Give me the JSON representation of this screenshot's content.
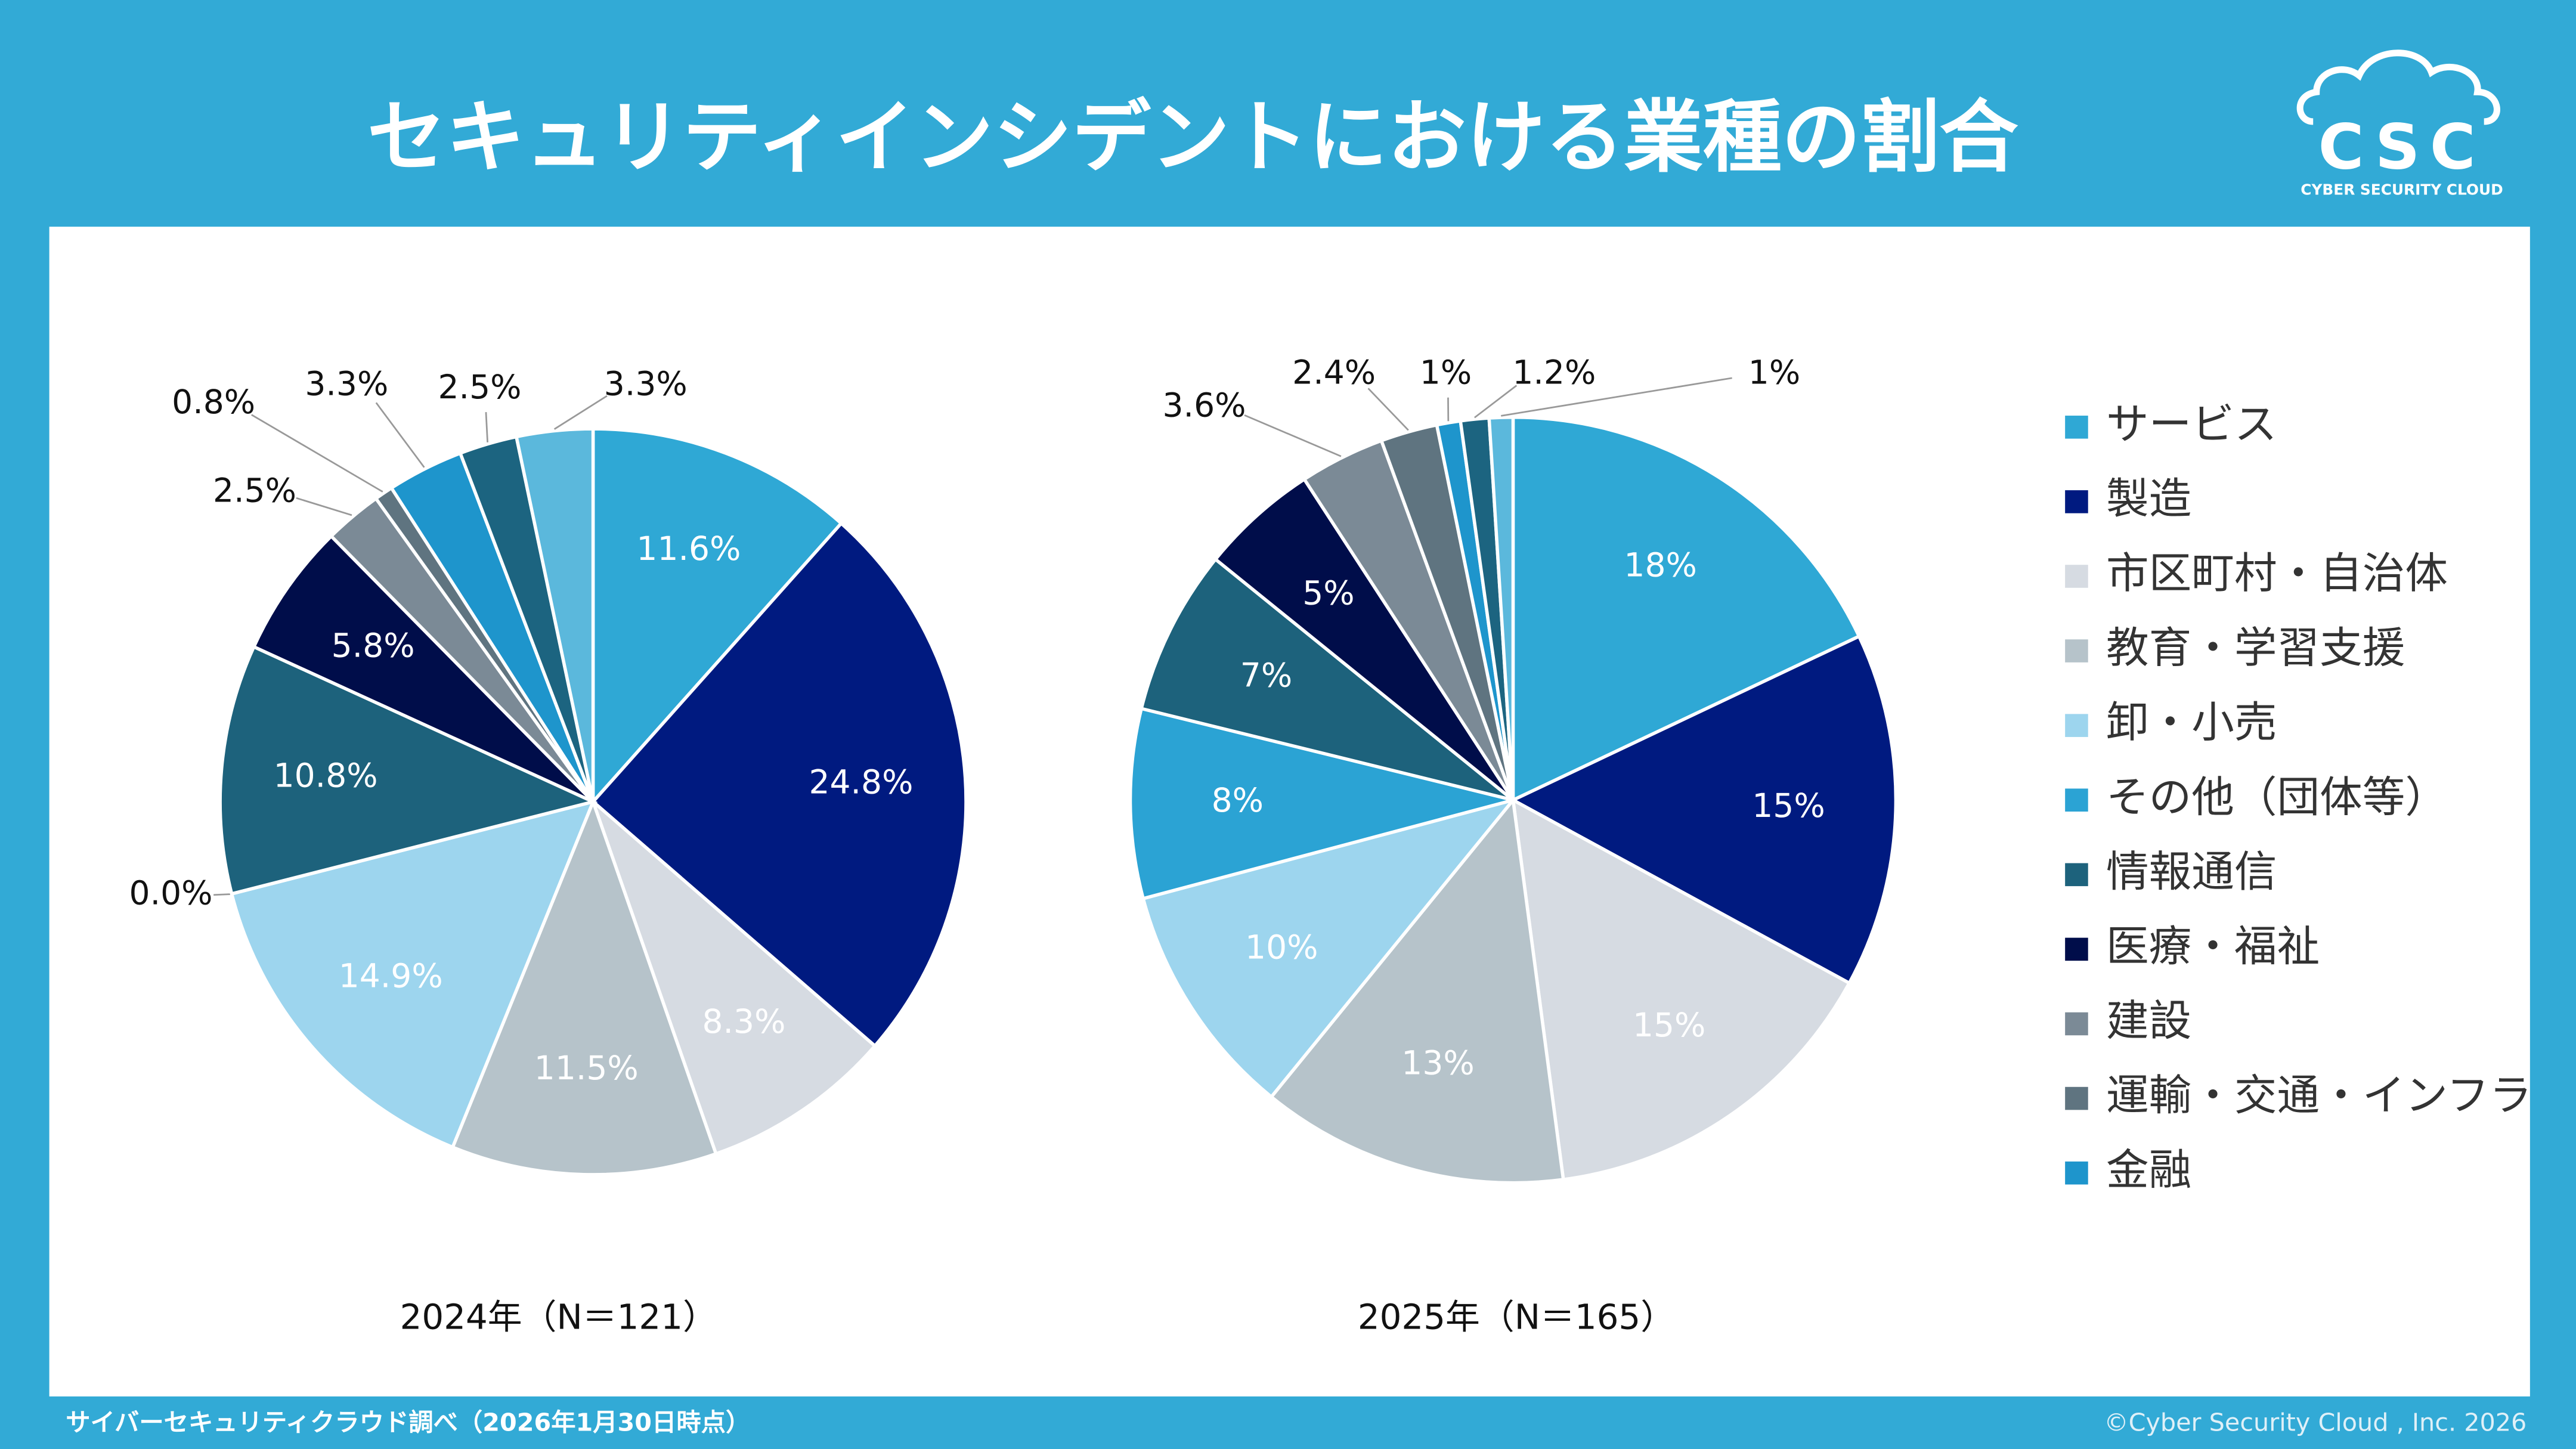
{
  "header": {
    "title": "セキュリティインシデントにおける業種の割合"
  },
  "logo": {
    "text": "CSC",
    "subtitle": "CYBER SECURITY CLOUD"
  },
  "footer": {
    "source": "サイバーセキュリティクラウド調べ（2026年1月30日時点）",
    "copyright": "©Cyber Security Cloud , Inc. 2026"
  },
  "chart_data": [
    {
      "type": "pie",
      "title": "2024年（N＝121）",
      "categories": [
        "サービス",
        "製造",
        "市区町村・自治体",
        "教育・学習支援",
        "卸・小売",
        "その他（団体等）",
        "情報通信",
        "医療・福祉",
        "建設",
        "運輸・交通・インフラ",
        "金融",
        null,
        null
      ],
      "values": [
        11.6,
        24.8,
        8.3,
        11.5,
        14.9,
        0.0,
        10.8,
        5.8,
        2.5,
        0.8,
        3.3,
        2.5,
        3.3
      ],
      "value_labels": [
        "11.6%",
        "24.8%",
        "8.3%",
        "11.5%",
        "14.9%",
        "0.0%",
        "10.8%",
        "5.8%",
        "2.5%",
        "0.8%",
        "3.3%",
        "2.5%",
        "3.3%"
      ],
      "colors": [
        "#2fa8d5",
        "#001a80",
        "#d6dbe2",
        "#b6c3ca",
        "#9dd5ee",
        "#2ba3d4",
        "#1d627c",
        "#000d4a",
        "#7b8a96",
        "#5f7480",
        "#1e95cc",
        "#1c6480",
        "#5bb8dc"
      ]
    },
    {
      "type": "pie",
      "title": "2025年（N＝165）",
      "legend": "right",
      "categories": [
        "サービス",
        "製造",
        "市区町村・自治体",
        "教育・学習支援",
        "卸・小売",
        "その他（団体等）",
        "情報通信",
        "医療・福祉",
        "建設",
        "運輸・交通・インフラ",
        "金融",
        null,
        null
      ],
      "values": [
        18,
        15,
        15,
        13,
        10,
        8,
        7,
        5,
        3.6,
        2.4,
        1,
        1.2,
        1
      ],
      "value_labels": [
        "18%",
        "15%",
        "15%",
        "13%",
        "10%",
        "8%",
        "7%",
        "5%",
        "3.6%",
        "2.4%",
        "1%",
        "1.2%",
        "1%"
      ],
      "colors": [
        "#2fa8d5",
        "#001a80",
        "#d6dbe2",
        "#b6c3ca",
        "#9dd5ee",
        "#2ba3d4",
        "#1d627c",
        "#000d4a",
        "#7b8a96",
        "#5f7480",
        "#1e95cc",
        "#1c6480",
        "#5bb8dc"
      ]
    }
  ]
}
